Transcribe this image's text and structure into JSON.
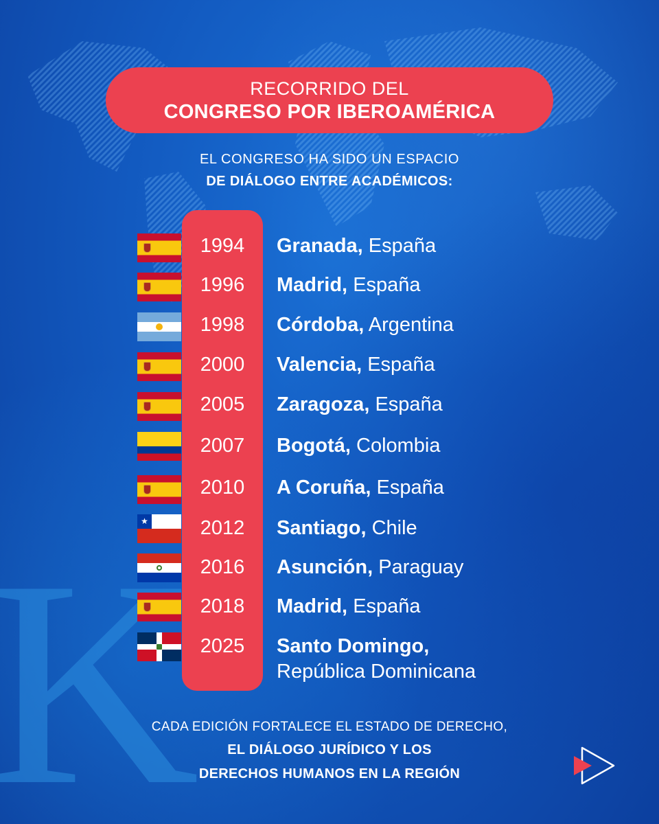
{
  "header": {
    "title_line1": "RECORRIDO DEL",
    "title_line2": "CONGRESO POR IBEROAMÉRICA",
    "subtitle_line1": "EL CONGRESO HA SIDO UN ESPACIO",
    "subtitle_line2": "DE DIÁLOGO ENTRE ACADÉMICOS:"
  },
  "timeline": [
    {
      "year": "1994",
      "city": "Granada,",
      "country": "España",
      "flag": "spain-flag"
    },
    {
      "year": "1996",
      "city": "Madrid,",
      "country": "España",
      "flag": "spain-flag"
    },
    {
      "year": "1998",
      "city": "Córdoba,",
      "country": "Argentina",
      "flag": "argentina-flag"
    },
    {
      "year": "2000",
      "city": "Valencia,",
      "country": "España",
      "flag": "spain-flag"
    },
    {
      "year": "2005",
      "city": "Zaragoza,",
      "country": "España",
      "flag": "spain-flag"
    },
    {
      "year": "2007",
      "city": "Bogotá,",
      "country": "Colombia",
      "flag": "colombia-flag"
    },
    {
      "year": "2010",
      "city": "A Coruña,",
      "country": "España",
      "flag": "spain-flag"
    },
    {
      "year": "2012",
      "city": "Santiago,",
      "country": "Chile",
      "flag": "chile-flag"
    },
    {
      "year": "2016",
      "city": "Asunción,",
      "country": "Paraguay",
      "flag": "paraguay-flag"
    },
    {
      "year": "2018",
      "city": "Madrid,",
      "country": "España",
      "flag": "spain-flag"
    },
    {
      "year": "2025",
      "city": "Santo Domingo,",
      "country": "República Dominicana",
      "flag": "dominican-republic-flag"
    }
  ],
  "footer": {
    "line1": "CADA EDICIÓN FORTALECE EL ESTADO DE DERECHO,",
    "line2": "EL DIÁLOGO JURÍDICO Y LOS",
    "line3": "DERECHOS HUMANOS EN LA REGIÓN"
  },
  "watermark": "K",
  "colors": {
    "accent": "#ec4150",
    "background": "#1259bf",
    "text": "#ffffff"
  }
}
